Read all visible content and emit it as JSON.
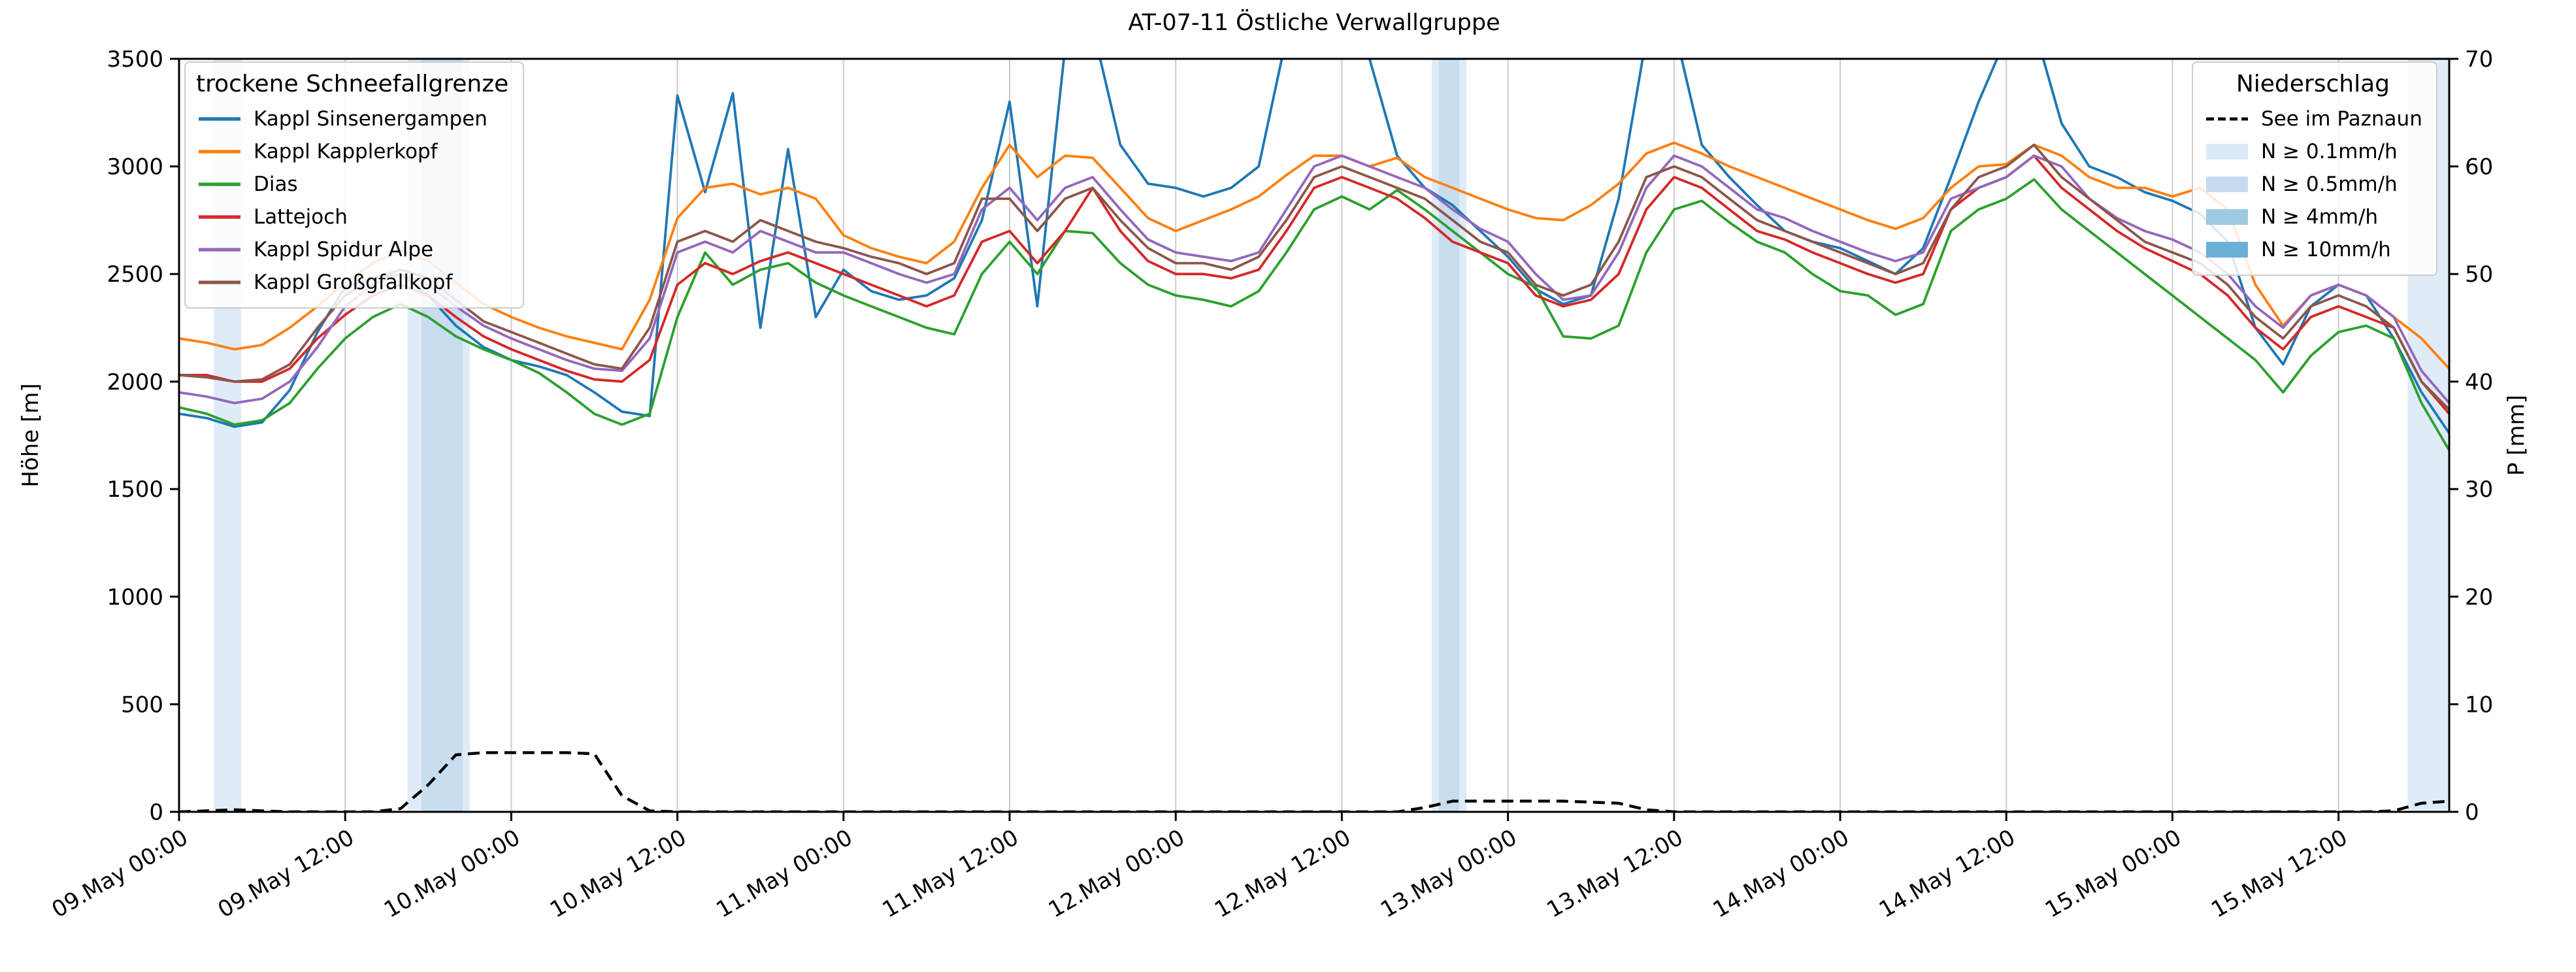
{
  "title": "AT-07-11 Östliche Verwallgruppe",
  "axes": {
    "y_left": {
      "label": "Höhe [m]",
      "min": 0,
      "max": 3500,
      "ticks": [
        0,
        500,
        1000,
        1500,
        2000,
        2500,
        3000,
        3500
      ]
    },
    "y_right": {
      "label": "P [mm]",
      "min": 0,
      "max": 70,
      "ticks": [
        0,
        10,
        20,
        30,
        40,
        50,
        60,
        70
      ]
    },
    "x": {
      "first_tick_hour": 0,
      "tick_step_hours": 12,
      "tick_labels": [
        "09.May 00:00",
        "09.May 12:00",
        "10.May 00:00",
        "10.May 12:00",
        "11.May 00:00",
        "11.May 12:00",
        "12.May 00:00",
        "12.May 12:00",
        "13.May 00:00",
        "13.May 12:00",
        "14.May 00:00",
        "14.May 12:00",
        "15.May 00:00",
        "15.May 12:00"
      ]
    }
  },
  "legend_snow": {
    "title": "trockene Schneefallgrenze",
    "entries": [
      {
        "label": "Kappl Sinsenergampen",
        "color": "#1f77b4"
      },
      {
        "label": "Kappl Kapplerkopf",
        "color": "#ff7f0e"
      },
      {
        "label": "Dias",
        "color": "#2ca02c"
      },
      {
        "label": "Lattejoch",
        "color": "#d62728"
      },
      {
        "label": "Kappl Spidur Alpe",
        "color": "#9467bd"
      },
      {
        "label": "Kappl Großgfallkopf",
        "color": "#8c564b"
      }
    ]
  },
  "legend_precip": {
    "title": "Niederschlag",
    "line_entry": {
      "label": "See im Paznaun",
      "color": "#000000"
    },
    "patch_entries": [
      {
        "label": "N ≥ 0.1mm/h",
        "color": "#dceaf7"
      },
      {
        "label": "N ≥ 0.5mm/h",
        "color": "#c6dbef"
      },
      {
        "label": "N ≥ 4mm/h",
        "color": "#9ecae1"
      },
      {
        "label": "N ≥ 10mm/h",
        "color": "#6baed6"
      }
    ]
  },
  "chart_data": {
    "type": "line",
    "x_range_hours": [
      0,
      164
    ],
    "x_hours": [
      0,
      2,
      4,
      6,
      8,
      10,
      12,
      14,
      16,
      18,
      20,
      22,
      24,
      26,
      28,
      30,
      32,
      34,
      36,
      38,
      40,
      42,
      44,
      46,
      48,
      50,
      52,
      54,
      56,
      58,
      60,
      62,
      64,
      66,
      68,
      70,
      72,
      74,
      76,
      78,
      80,
      82,
      84,
      86,
      88,
      90,
      92,
      94,
      96,
      98,
      100,
      102,
      104,
      106,
      108,
      110,
      112,
      114,
      116,
      118,
      120,
      122,
      124,
      126,
      128,
      130,
      132,
      134,
      136,
      138,
      140,
      142,
      144,
      146,
      148,
      150,
      152,
      154,
      156,
      158,
      160,
      162,
      164
    ],
    "series": [
      {
        "name": "Kappl Sinsenergampen",
        "color": "#1f77b4",
        "values": [
          1850,
          1830,
          1790,
          1810,
          1960,
          2230,
          2440,
          2480,
          2500,
          2400,
          2260,
          2160,
          2100,
          2070,
          2030,
          1950,
          1860,
          1840,
          3330,
          2880,
          3340,
          2250,
          3080,
          2300,
          2520,
          2420,
          2380,
          2400,
          2480,
          2750,
          3300,
          2350,
          3550,
          3650,
          3100,
          2920,
          2900,
          2860,
          2900,
          3000,
          3600,
          3750,
          3700,
          3500,
          3050,
          2900,
          2820,
          2700,
          2580,
          2430,
          2360,
          2400,
          2850,
          3600,
          3650,
          3100,
          2950,
          2820,
          2700,
          2650,
          2620,
          2560,
          2500,
          2620,
          2950,
          3300,
          3600,
          3650,
          3200,
          3000,
          2950,
          2880,
          2840,
          2780,
          2650,
          2250,
          2080,
          2350,
          2450,
          2400,
          2200,
          1950,
          1760
        ]
      },
      {
        "name": "Kappl Kapplerkopf",
        "color": "#ff7f0e",
        "values": [
          2200,
          2180,
          2150,
          2170,
          2250,
          2350,
          2460,
          2550,
          2610,
          2560,
          2460,
          2360,
          2300,
          2250,
          2210,
          2180,
          2150,
          2380,
          2760,
          2900,
          2920,
          2870,
          2900,
          2850,
          2680,
          2620,
          2580,
          2550,
          2650,
          2900,
          3100,
          2950,
          3050,
          3040,
          2900,
          2760,
          2700,
          2750,
          2800,
          2860,
          2960,
          3050,
          3050,
          3000,
          3040,
          2950,
          2900,
          2850,
          2800,
          2760,
          2750,
          2820,
          2920,
          3060,
          3110,
          3060,
          3000,
          2950,
          2900,
          2850,
          2800,
          2750,
          2710,
          2760,
          2900,
          3000,
          3010,
          3100,
          3050,
          2950,
          2900,
          2900,
          2860,
          2900,
          2800,
          2450,
          2260,
          2400,
          2450,
          2400,
          2300,
          2200,
          2060
        ]
      },
      {
        "name": "Dias",
        "color": "#2ca02c",
        "values": [
          1880,
          1850,
          1800,
          1820,
          1900,
          2060,
          2200,
          2300,
          2360,
          2300,
          2210,
          2150,
          2100,
          2040,
          1950,
          1850,
          1800,
          1850,
          2300,
          2600,
          2450,
          2520,
          2550,
          2460,
          2400,
          2350,
          2300,
          2250,
          2220,
          2500,
          2650,
          2500,
          2700,
          2690,
          2550,
          2450,
          2400,
          2380,
          2350,
          2420,
          2600,
          2800,
          2860,
          2800,
          2890,
          2800,
          2700,
          2600,
          2500,
          2440,
          2210,
          2200,
          2260,
          2600,
          2800,
          2840,
          2740,
          2650,
          2600,
          2500,
          2420,
          2400,
          2310,
          2360,
          2700,
          2800,
          2850,
          2940,
          2800,
          2700,
          2600,
          2500,
          2400,
          2300,
          2200,
          2100,
          1950,
          2120,
          2230,
          2260,
          2200,
          1900,
          1680
        ]
      },
      {
        "name": "Lattejoch",
        "color": "#d62728",
        "values": [
          2030,
          2030,
          2000,
          2000,
          2060,
          2200,
          2310,
          2400,
          2450,
          2400,
          2300,
          2210,
          2150,
          2100,
          2050,
          2010,
          2000,
          2100,
          2450,
          2550,
          2500,
          2560,
          2600,
          2550,
          2500,
          2450,
          2400,
          2350,
          2400,
          2650,
          2700,
          2550,
          2700,
          2900,
          2700,
          2560,
          2500,
          2500,
          2480,
          2520,
          2700,
          2900,
          2950,
          2900,
          2850,
          2760,
          2650,
          2600,
          2550,
          2400,
          2350,
          2380,
          2500,
          2800,
          2950,
          2900,
          2800,
          2700,
          2660,
          2600,
          2550,
          2500,
          2460,
          2500,
          2800,
          2900,
          2950,
          3050,
          2900,
          2800,
          2700,
          2620,
          2560,
          2500,
          2400,
          2250,
          2150,
          2300,
          2350,
          2300,
          2250,
          2000,
          1850
        ]
      },
      {
        "name": "Kappl Spidur Alpe",
        "color": "#9467bd",
        "values": [
          1950,
          1930,
          1900,
          1920,
          2000,
          2160,
          2350,
          2450,
          2500,
          2450,
          2350,
          2260,
          2200,
          2150,
          2100,
          2060,
          2050,
          2200,
          2600,
          2650,
          2600,
          2700,
          2650,
          2600,
          2600,
          2550,
          2500,
          2460,
          2500,
          2800,
          2900,
          2750,
          2900,
          2950,
          2800,
          2660,
          2600,
          2580,
          2560,
          2600,
          2800,
          3000,
          3050,
          3000,
          2950,
          2900,
          2800,
          2710,
          2650,
          2500,
          2380,
          2400,
          2600,
          2900,
          3050,
          3000,
          2900,
          2800,
          2760,
          2700,
          2650,
          2600,
          2560,
          2600,
          2850,
          2900,
          2950,
          3050,
          3000,
          2850,
          2760,
          2700,
          2660,
          2600,
          2500,
          2350,
          2250,
          2400,
          2450,
          2400,
          2300,
          2050,
          1900
        ]
      },
      {
        "name": "Kappl Großgfallkopf",
        "color": "#8c564b",
        "values": [
          2030,
          2020,
          2000,
          2010,
          2080,
          2250,
          2400,
          2480,
          2520,
          2480,
          2380,
          2280,
          2230,
          2180,
          2130,
          2080,
          2060,
          2250,
          2650,
          2700,
          2650,
          2750,
          2700,
          2650,
          2620,
          2580,
          2550,
          2500,
          2550,
          2850,
          2850,
          2700,
          2850,
          2900,
          2750,
          2620,
          2550,
          2550,
          2520,
          2580,
          2750,
          2950,
          3000,
          2950,
          2900,
          2850,
          2750,
          2650,
          2600,
          2450,
          2400,
          2450,
          2650,
          2950,
          3000,
          2950,
          2850,
          2750,
          2700,
          2650,
          2600,
          2550,
          2500,
          2550,
          2800,
          2950,
          3000,
          3100,
          2950,
          2850,
          2750,
          2650,
          2600,
          2550,
          2450,
          2300,
          2200,
          2350,
          2400,
          2350,
          2250,
          2000,
          1870
        ]
      }
    ],
    "precip_line": {
      "name": "See im Paznaun",
      "axis": "right",
      "style": "dashed",
      "color": "#000000",
      "values": [
        0,
        0.1,
        0.2,
        0.1,
        0,
        0,
        0,
        0,
        0.3,
        2.5,
        5.3,
        5.5,
        5.5,
        5.5,
        5.5,
        5.4,
        1.5,
        0.1,
        0,
        0,
        0,
        0,
        0,
        0,
        0,
        0,
        0,
        0,
        0,
        0,
        0,
        0,
        0,
        0,
        0,
        0,
        0,
        0,
        0,
        0,
        0,
        0,
        0,
        0,
        0,
        0.4,
        1,
        1,
        1,
        1,
        1,
        0.9,
        0.8,
        0.2,
        0,
        0,
        0,
        0,
        0,
        0,
        0,
        0,
        0,
        0,
        0,
        0,
        0,
        0,
        0,
        0,
        0,
        0,
        0,
        0,
        0,
        0,
        0,
        0,
        0,
        0,
        0.1,
        0.8,
        1
      ]
    },
    "precip_bands": [
      {
        "start_hour": 2.5,
        "end_hour": 4.5,
        "level": "N ≥ 0.1mm/h",
        "color": "#dceaf7"
      },
      {
        "start_hour": 16.5,
        "end_hour": 21,
        "level": "N ≥ 0.1mm/h",
        "color": "#dceaf7"
      },
      {
        "start_hour": 17.5,
        "end_hour": 20.5,
        "level": "N ≥ 0.5mm/h",
        "color": "#c6dbef"
      },
      {
        "start_hour": 90.5,
        "end_hour": 93,
        "level": "N ≥ 0.1mm/h",
        "color": "#dceaf7"
      },
      {
        "start_hour": 91,
        "end_hour": 92.5,
        "level": "N ≥ 0.5mm/h",
        "color": "#c6dbef"
      },
      {
        "start_hour": 161,
        "end_hour": 164,
        "level": "N ≥ 0.1mm/h",
        "color": "#dceaf7"
      }
    ]
  }
}
